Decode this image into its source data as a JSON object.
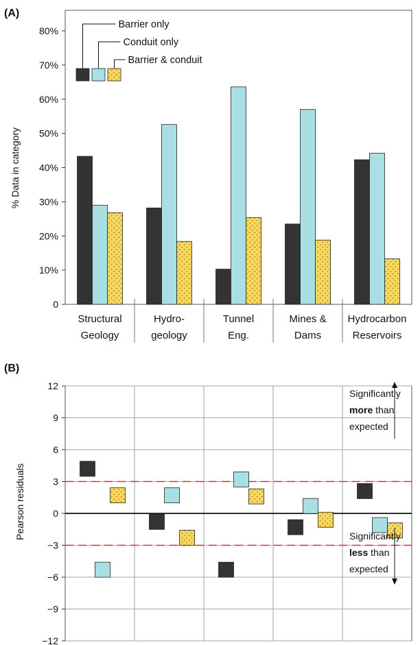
{
  "panels": {
    "a_label": "(A)",
    "b_label": "(B)"
  },
  "colors": {
    "barrier": "#333333",
    "conduit": "#a8dfe3",
    "both": "#f8d75c",
    "threshold": "#d93030",
    "grid": "#888888"
  },
  "annotations": {
    "more_line1": "Significantly",
    "more_bold": "more",
    "more_rest": " than",
    "more_line3": "expected",
    "less_line1": "Significantly",
    "less_bold": "less",
    "less_rest": " than",
    "less_line3": "expected"
  },
  "chart_data": [
    {
      "type": "bar",
      "panel": "(A)",
      "ylabel": "% Data in category",
      "xlabel": "",
      "ylim": [
        0,
        80
      ],
      "yticks": [
        "0",
        "10%",
        "20%",
        "30%",
        "40%",
        "50%",
        "60%",
        "70%",
        "80%"
      ],
      "categories": [
        [
          "Structural",
          "Geology"
        ],
        [
          "Hydro-",
          "geology"
        ],
        [
          "Tunnel",
          "Eng."
        ],
        [
          "Mines &",
          "Dams"
        ],
        [
          "Hydrocarbon",
          "Reservoirs"
        ]
      ],
      "legend_placement": "top-left",
      "series": [
        {
          "name": "Barrier only",
          "values": [
            43.3,
            28.2,
            10.3,
            23.5,
            42.3
          ]
        },
        {
          "name": "Conduit  only",
          "values": [
            29.0,
            52.6,
            63.6,
            57.0,
            44.2
          ]
        },
        {
          "name": "Barrier & conduit",
          "values": [
            26.8,
            18.4,
            25.4,
            18.8,
            13.3
          ]
        }
      ]
    },
    {
      "type": "scatter",
      "panel": "(B)",
      "ylabel": "Pearson residuals",
      "xlabel": "",
      "ylim": [
        -12,
        12
      ],
      "yticks": [
        "−12",
        "−9",
        "−6",
        "−3",
        "0",
        "3",
        "6",
        "9",
        "12"
      ],
      "reference_lines": [
        3,
        -3,
        0
      ],
      "series": [
        {
          "name": "Barrier only",
          "values": [
            4.2,
            -0.8,
            -5.3,
            -1.3,
            2.1
          ]
        },
        {
          "name": "Conduit  only",
          "values": [
            -5.3,
            1.7,
            3.2,
            0.7,
            -1.1
          ]
        },
        {
          "name": "Barrier & conduit",
          "values": [
            1.7,
            -2.3,
            1.6,
            -0.6,
            -1.6
          ]
        }
      ]
    }
  ]
}
